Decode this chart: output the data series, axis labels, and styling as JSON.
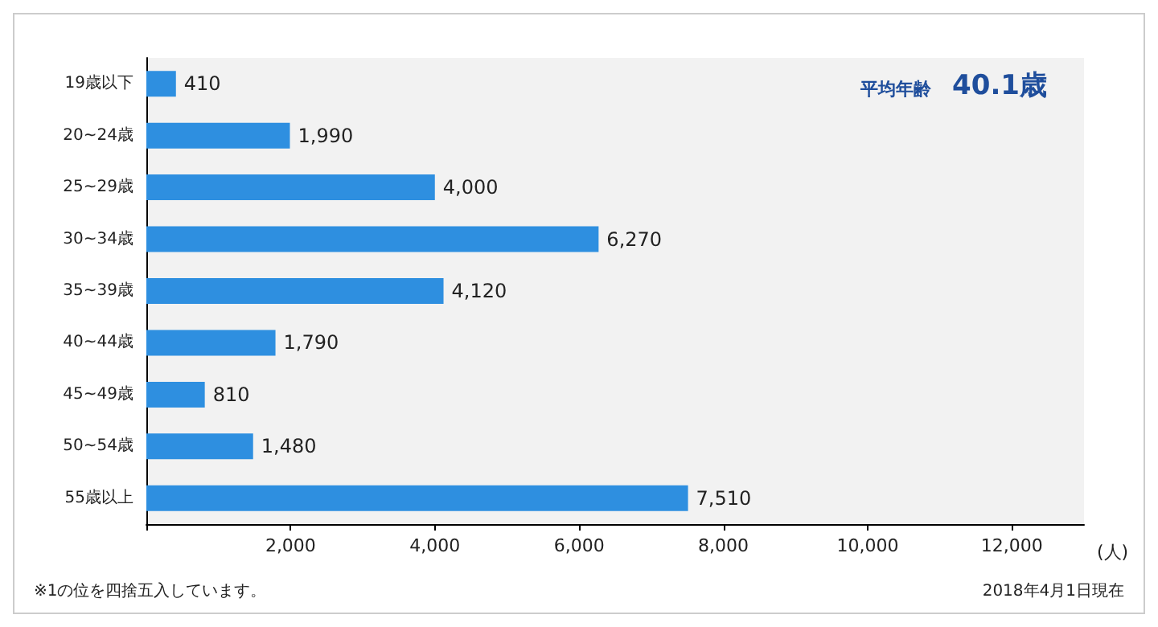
{
  "chart_data": {
    "type": "bar",
    "orientation": "horizontal",
    "categories": [
      "19歳以下",
      "20~24歳",
      "25~29歳",
      "30~34歳",
      "35~39歳",
      "40~44歳",
      "45~49歳",
      "50~54歳",
      "55歳以上"
    ],
    "values": [
      410,
      1990,
      4000,
      6270,
      4120,
      1790,
      810,
      1480,
      7510
    ],
    "value_labels": [
      "410",
      "1,990",
      "4,000",
      "6,270",
      "4,120",
      "1,790",
      "810",
      "1,480",
      "7,510"
    ],
    "color": "#2e8fe0",
    "xlim": [
      0,
      13000
    ],
    "xticks": [
      {
        "value": 0,
        "label": null
      },
      {
        "value": 2000,
        "label": "2,000"
      },
      {
        "value": 4000,
        "label": "4,000"
      },
      {
        "value": 6000,
        "label": "6,000"
      },
      {
        "value": 8000,
        "label": "8,000"
      },
      {
        "value": 10000,
        "label": "10,000"
      },
      {
        "value": 12000,
        "label": "12,000"
      }
    ],
    "xlabel": "(人)",
    "grid": false,
    "annotations": [
      "平均年齢",
      "40.1歳",
      "※1の位を四捨五入しています。",
      "2018年4月1日現在"
    ]
  }
}
